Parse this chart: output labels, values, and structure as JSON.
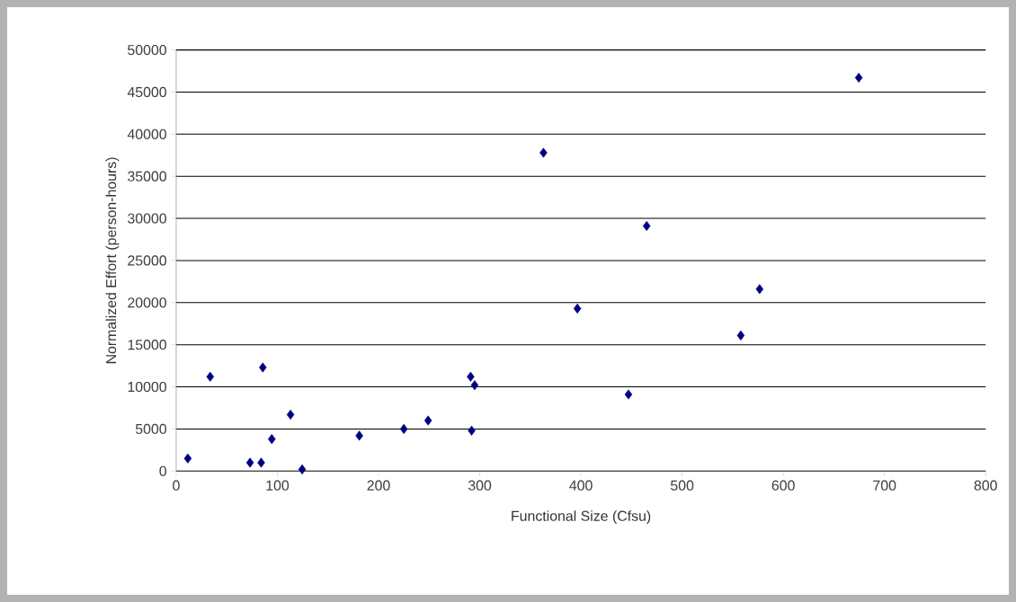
{
  "chart_data": {
    "type": "scatter",
    "xlabel": "Functional Size (Cfsu)",
    "ylabel": "Normalized Effort (person-hours)",
    "x": [
      11.5,
      33.6,
      85.6,
      73,
      84,
      94.5,
      113,
      124.5,
      181,
      225,
      249,
      291,
      295,
      292,
      363,
      396.5,
      447,
      465,
      558,
      576.6,
      674.6
    ],
    "series": [
      {
        "color": "#000080",
        "values": [
          1500,
          11200,
          12300,
          1000,
          1000,
          3800,
          6700,
          200,
          4200,
          5000,
          6000,
          11200,
          10200,
          4800,
          37800,
          19300,
          9100,
          29100,
          16100,
          21600,
          46700
        ]
      }
    ],
    "xlim": [
      0,
      800
    ],
    "xticks": [
      0,
      100,
      200,
      300,
      400,
      500,
      600,
      700,
      800
    ],
    "ylim": [
      0,
      50000
    ],
    "yticks": [
      0,
      5000,
      10000,
      15000,
      20000,
      25000,
      30000,
      35000,
      40000,
      45000,
      50000
    ],
    "grid": "y",
    "marker": "diamond"
  }
}
